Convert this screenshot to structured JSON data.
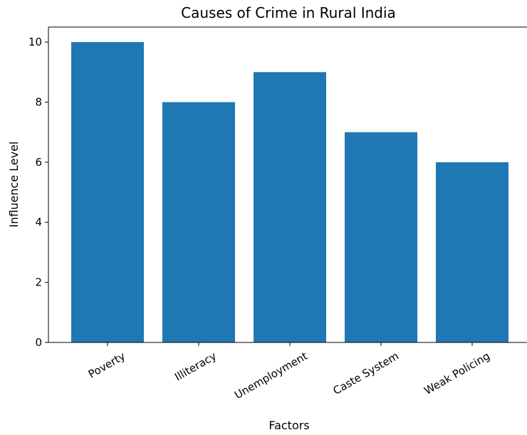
{
  "chart_data": {
    "type": "bar",
    "title": "Causes of Crime in Rural India",
    "xlabel": "Factors",
    "ylabel": "Influence Level",
    "categories": [
      "Poverty",
      "Illiteracy",
      "Unemployment",
      "Caste System",
      "Weak Policing"
    ],
    "values": [
      10,
      8,
      9,
      7,
      6
    ],
    "ylim": [
      0,
      10.5
    ],
    "yticks": [
      0,
      2,
      4,
      6,
      8,
      10
    ],
    "bar_color": "#1f77b4",
    "grid": false,
    "legend": "none"
  }
}
